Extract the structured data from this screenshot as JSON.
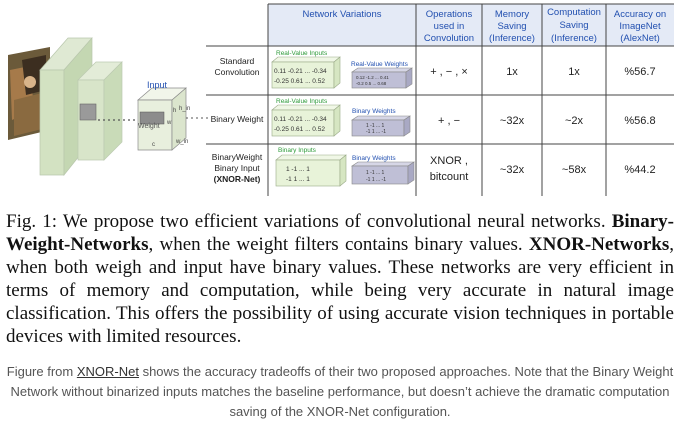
{
  "table": {
    "headers": [
      "Network Variations",
      "Operations used in Convolution",
      "Memory Saving (Inference)",
      "Computation Saving (Inference)",
      "Accuracy on ImageNet (AlexNet)"
    ],
    "header_lines": {
      "variations": [
        "Network Variations"
      ],
      "operations": [
        "Operations",
        "used in",
        "Convolution"
      ],
      "memory": [
        "Memory",
        "Saving",
        "(Inference)"
      ],
      "computation": [
        "Computation",
        "Saving",
        "(Inference)"
      ],
      "accuracy": [
        "Accuracy on",
        "ImageNet",
        "(AlexNet)"
      ]
    },
    "rows": [
      {
        "name_lines": [
          "Standard",
          "Convolution"
        ],
        "input_label": "Real-Value Inputs",
        "input_values": [
          "0.11 -0.21 ... -0.34",
          "-0.25 0.61 ... 0.52"
        ],
        "weight_label": "Real-Value Weights",
        "weight_values": [
          "0.12 -1.2 ... 0.41",
          "-0.2 0.5 ... 0.68"
        ],
        "operations": "+ , − , ×",
        "memory": "1x",
        "computation": "1x",
        "accuracy": "%56.7"
      },
      {
        "name_lines": [
          "Binary Weight"
        ],
        "input_label": "Real-Value Inputs",
        "input_values": [
          "0.11 -0.21 ... -0.34",
          "-0.25 0.61 ... 0.52"
        ],
        "weight_label": "Binary Weights",
        "weight_values": [
          "1 -1 ... 1",
          "-1 1 ... -1"
        ],
        "operations": "+ , −",
        "memory": "~32x",
        "computation": "~2x",
        "accuracy": "%56.8"
      },
      {
        "name_lines": [
          "BinaryWeight",
          "Binary Input",
          "(XNOR-Net)"
        ],
        "input_label": "Binary Inputs",
        "input_values": [
          "1 -1 ... 1",
          "-1 1 ... 1"
        ],
        "weight_label": "Binary Weights",
        "weight_values": [
          "1 -1 ... 1",
          "-1 1 ... -1"
        ],
        "operations_lines": [
          "XNOR ,",
          "bitcount"
        ],
        "memory": "~32x",
        "computation": "~58x",
        "accuracy": "%44.2"
      }
    ]
  },
  "diagram": {
    "input_label": "Input",
    "weight_label": "Weight",
    "dim_labels": [
      "h",
      "h_in",
      "w",
      "c",
      "w_in"
    ]
  },
  "caption": {
    "prefix": "Fig. 1: We propose two efficient variations of convolutional neural networks. ",
    "bold1": "Binary-Weight-Networks",
    "mid1": ", when the weight filters contains binary values. ",
    "bold2": "XNOR-Networks",
    "rest": ", when both weigh and input have binary values. These networks are very efficient in terms of memory and computation, while being very accurate in natural image classification. This offers the possibility of using accurate vision techniques in portable devices with limited resources."
  },
  "note": {
    "before_link": "Figure from ",
    "link": "XNOR-Net",
    "after_link": " shows the accuracy tradeoffs of their two proposed approaches. Note that the Binary Weight Network without binarized inputs matches the baseline performance, but doesn’t achieve the dramatic computation saving of the XNOR-Net configuration."
  },
  "colors": {
    "header_bg": "#e4eaf6",
    "green_label": "#2e9b3a",
    "blue_label": "#2250b0",
    "input_block": "#e8f3d9",
    "weight_block": "#bfbfd6"
  }
}
